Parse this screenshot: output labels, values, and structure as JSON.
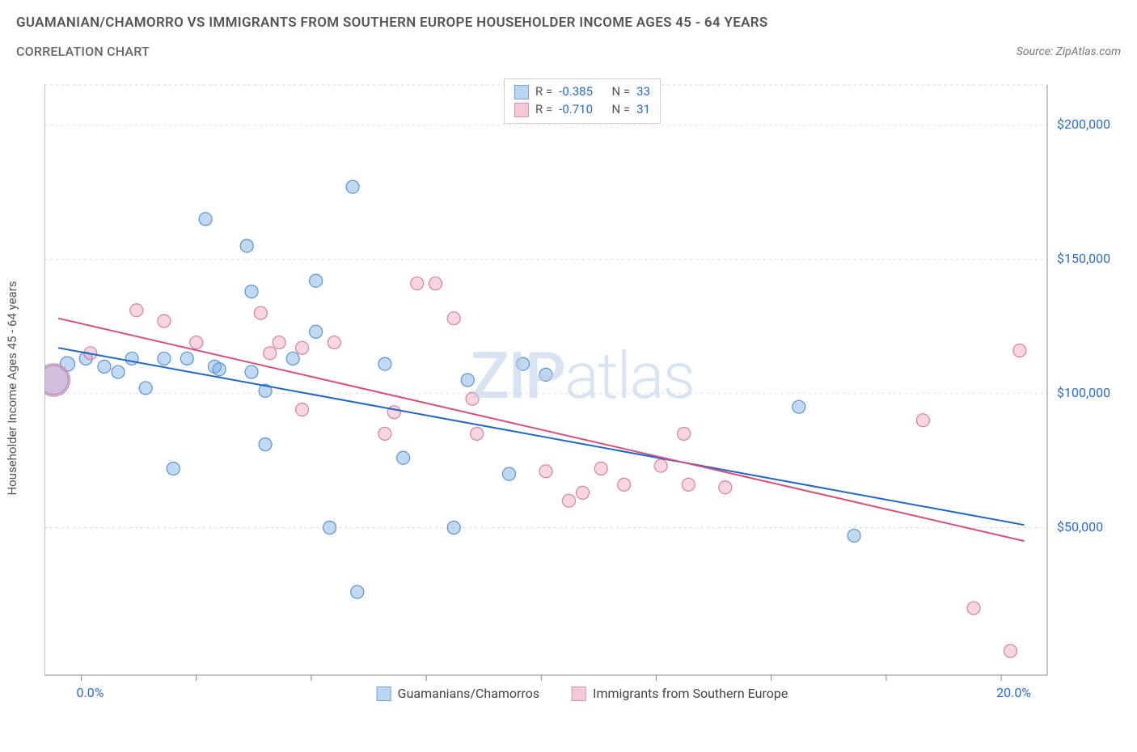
{
  "header": {
    "title": "GUAMANIAN/CHAMORRO VS IMMIGRANTS FROM SOUTHERN EUROPE HOUSEHOLDER INCOME AGES 45 - 64 YEARS",
    "subtitle": "CORRELATION CHART",
    "source_prefix": "Source: ",
    "source_name": "ZipAtlas.com"
  },
  "chart": {
    "type": "scatter",
    "y_axis_label": "Householder Income Ages 45 - 64 years",
    "watermark_bold": "ZIP",
    "watermark_thin": "atlas",
    "background_color": "#ffffff",
    "grid_color": "#d9d9d9",
    "axis_color": "#888888",
    "x_domain": [
      -0.8,
      21.0
    ],
    "y_domain": [
      -5000,
      215000
    ],
    "x_ticks": [
      0,
      2.5,
      5.0,
      7.5,
      10.0,
      12.5,
      15.0,
      17.5,
      20.0
    ],
    "x_tick_labels": {
      "0": "0.0%",
      "20": "20.0%"
    },
    "y_gridlines": [
      50000,
      100000,
      150000,
      200000
    ],
    "y_tick_labels": {
      "50000": "$50,000",
      "100000": "$100,000",
      "150000": "$150,000",
      "200000": "$200,000"
    },
    "series": [
      {
        "key": "guamanian",
        "name": "Guamanians/Chamorros",
        "color_fill": "rgba(120,170,230,0.45)",
        "color_stroke": "#5a93d6",
        "swatch_fill": "#bcd6f2",
        "swatch_stroke": "#6fa3dc",
        "r_stat": "-0.385",
        "n_stat": "33",
        "trend": {
          "x1": -0.5,
          "y1": 117000,
          "x2": 20.5,
          "y2": 51000,
          "stroke": "#1e66c9",
          "width": 2
        },
        "points": [
          {
            "x": -0.6,
            "y": 105000,
            "r": 18
          },
          {
            "x": -0.3,
            "y": 111000,
            "r": 9
          },
          {
            "x": 0.1,
            "y": 113000,
            "r": 8
          },
          {
            "x": 0.5,
            "y": 110000,
            "r": 8
          },
          {
            "x": 0.8,
            "y": 108000,
            "r": 8
          },
          {
            "x": 1.1,
            "y": 113000,
            "r": 8
          },
          {
            "x": 1.4,
            "y": 102000,
            "r": 8
          },
          {
            "x": 1.8,
            "y": 113000,
            "r": 8
          },
          {
            "x": 2.0,
            "y": 72000,
            "r": 8
          },
          {
            "x": 2.3,
            "y": 113000,
            "r": 8
          },
          {
            "x": 2.7,
            "y": 165000,
            "r": 8
          },
          {
            "x": 2.9,
            "y": 110000,
            "r": 8
          },
          {
            "x": 3.0,
            "y": 109000,
            "r": 8
          },
          {
            "x": 3.6,
            "y": 155000,
            "r": 8
          },
          {
            "x": 3.7,
            "y": 138000,
            "r": 8
          },
          {
            "x": 3.7,
            "y": 108000,
            "r": 8
          },
          {
            "x": 4.0,
            "y": 81000,
            "r": 8
          },
          {
            "x": 4.0,
            "y": 101000,
            "r": 8
          },
          {
            "x": 4.6,
            "y": 113000,
            "r": 8
          },
          {
            "x": 5.1,
            "y": 142000,
            "r": 8
          },
          {
            "x": 5.1,
            "y": 123000,
            "r": 8
          },
          {
            "x": 5.4,
            "y": 50000,
            "r": 8
          },
          {
            "x": 5.9,
            "y": 177000,
            "r": 8
          },
          {
            "x": 6.0,
            "y": 26000,
            "r": 8
          },
          {
            "x": 6.6,
            "y": 111000,
            "r": 8
          },
          {
            "x": 7.0,
            "y": 76000,
            "r": 8
          },
          {
            "x": 8.1,
            "y": 50000,
            "r": 8
          },
          {
            "x": 8.4,
            "y": 105000,
            "r": 8
          },
          {
            "x": 9.3,
            "y": 70000,
            "r": 8
          },
          {
            "x": 9.6,
            "y": 111000,
            "r": 8
          },
          {
            "x": 10.1,
            "y": 107000,
            "r": 8
          },
          {
            "x": 15.6,
            "y": 95000,
            "r": 8
          },
          {
            "x": 16.8,
            "y": 47000,
            "r": 8
          }
        ]
      },
      {
        "key": "southern_europe",
        "name": "Immigrants from Southern Europe",
        "color_fill": "rgba(235,150,180,0.40)",
        "color_stroke": "#db7fa1",
        "swatch_fill": "#f3c9d8",
        "swatch_stroke": "#e093b0",
        "r_stat": "-0.710",
        "n_stat": "31",
        "trend": {
          "x1": -0.5,
          "y1": 128000,
          "x2": 20.5,
          "y2": 45000,
          "stroke": "#d94f7a",
          "width": 2
        },
        "points": [
          {
            "x": -0.6,
            "y": 105000,
            "r": 20
          },
          {
            "x": 0.2,
            "y": 115000,
            "r": 8
          },
          {
            "x": 1.2,
            "y": 131000,
            "r": 8
          },
          {
            "x": 1.8,
            "y": 127000,
            "r": 8
          },
          {
            "x": 2.5,
            "y": 119000,
            "r": 8
          },
          {
            "x": 3.9,
            "y": 130000,
            "r": 8
          },
          {
            "x": 4.1,
            "y": 115000,
            "r": 8
          },
          {
            "x": 4.3,
            "y": 119000,
            "r": 8
          },
          {
            "x": 4.8,
            "y": 94000,
            "r": 8
          },
          {
            "x": 4.8,
            "y": 117000,
            "r": 8
          },
          {
            "x": 5.5,
            "y": 119000,
            "r": 8
          },
          {
            "x": 6.6,
            "y": 85000,
            "r": 8
          },
          {
            "x": 6.8,
            "y": 93000,
            "r": 8
          },
          {
            "x": 7.3,
            "y": 141000,
            "r": 8
          },
          {
            "x": 7.7,
            "y": 141000,
            "r": 8
          },
          {
            "x": 8.1,
            "y": 128000,
            "r": 8
          },
          {
            "x": 8.5,
            "y": 98000,
            "r": 8
          },
          {
            "x": 8.6,
            "y": 85000,
            "r": 8
          },
          {
            "x": 10.1,
            "y": 71000,
            "r": 8
          },
          {
            "x": 10.6,
            "y": 60000,
            "r": 8
          },
          {
            "x": 10.9,
            "y": 63000,
            "r": 8
          },
          {
            "x": 11.3,
            "y": 72000,
            "r": 8
          },
          {
            "x": 11.8,
            "y": 66000,
            "r": 8
          },
          {
            "x": 12.6,
            "y": 73000,
            "r": 8
          },
          {
            "x": 13.1,
            "y": 85000,
            "r": 8
          },
          {
            "x": 13.2,
            "y": 66000,
            "r": 8
          },
          {
            "x": 14.0,
            "y": 65000,
            "r": 8
          },
          {
            "x": 18.3,
            "y": 90000,
            "r": 8
          },
          {
            "x": 19.4,
            "y": 20000,
            "r": 8
          },
          {
            "x": 20.2,
            "y": 4000,
            "r": 8
          },
          {
            "x": 20.4,
            "y": 116000,
            "r": 8
          }
        ]
      }
    ]
  }
}
